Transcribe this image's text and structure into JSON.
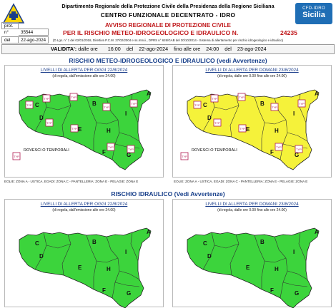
{
  "header": {
    "department": "Dipartimento Regionale della Protezione Civile della Presidenza della Regione Siciliana",
    "centre": "CENTRO FUNZIONALE DECENTRATO - IDRO",
    "logo_right_line1": "CFD-IDRO",
    "logo_right_line2": "Sicilia"
  },
  "protocol": {
    "prot_label": "prot. n°",
    "prot_value": "35544",
    "date_label": "del",
    "date_value": "22-ago-2024"
  },
  "notice": {
    "line1": "AVVISO REGIONALE DI PROTEZIONE CIVILE",
    "line2": "PER IL RISCHIO METEO-IDROGEOLOGICO E IDRAULICO N.",
    "number": "24235",
    "legal": "(D.Lgs. n° 1 del 02/01/2018, Direttiva P.C.M. 27/02/2004 e ss.mm.ii., DPRS n° 626/GAB del 30/10/2014 - Sistema di allertamento per rischio idrogeologico e idraulico)"
  },
  "validity": {
    "label": "VALIDITA':",
    "from_word": "dalle ore",
    "from_hour": "16:00",
    "from_del": "del",
    "from_date": "22-ago-2024",
    "to_word": "fino alle ore",
    "to_hour": "24:00",
    "to_del": "del",
    "to_date": "23-ago-2024"
  },
  "sections": {
    "meteo_title": "RISCHIO METEO-IDROGEOLOGICO E IDRAULICO (vedi Avvertenze)",
    "idraulico_title": "RISCHIO IDRAULICO (Vedi Avvertenze)"
  },
  "panels": {
    "meteo_today": {
      "title": "LIVELLI DI ALLERTA PER OGGI 22/8/2024",
      "subtitle": "(di regola, dall'emissione alle ore 24.00)",
      "fill": "#3cd43c",
      "legend_text": "ROVESCI O TEMPORALI"
    },
    "meteo_tomorrow": {
      "title": "LIVELLI DI ALLERTA PER DOMANI 23/8/2024",
      "subtitle": "(di regola, dalle ore 0.00 fino alle ore 24.00)",
      "fill": "#f5f23a",
      "legend_text": "ROVESCI O TEMPORALI"
    },
    "idraulico_today": {
      "title": "LIVELLI DI ALLERTA PER OGGI 22/8/2024",
      "subtitle": "(di regola, dall'emissione alle ore 24.00)",
      "fill": "#3cd43c"
    },
    "idraulico_tomorrow": {
      "title": "LIVELLI DI ALLERTA PER DOMANI 23/8/2024",
      "subtitle": "(di regola, dalle ore 0.00 fino alle ore 24.00)",
      "fill": "#3cd43c"
    }
  },
  "zones": {
    "A": "A",
    "B": "B",
    "C": "C",
    "D": "D",
    "E": "E",
    "F": "F",
    "G": "G",
    "H": "H",
    "I": "I"
  },
  "islands_note": "EOLIE: ZONA A - USTICA, EGADI: ZONA C - PANTELLERIA: ZONA E - PELAGIE: ZONA E",
  "storm_icon_text": "TYP",
  "colors": {
    "green_level": "#3cd43c",
    "yellow_level": "#f5f23a",
    "title_blue": "#173f8a",
    "alert_red": "#c0181b"
  }
}
